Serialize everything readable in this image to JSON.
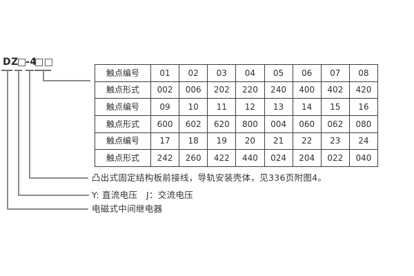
{
  "model_code": {
    "full": "DZ□-4□□",
    "seg_prefix": "DZ",
    "seg_box1": "□",
    "seg_dash4": "-4",
    "seg_box2": "□□"
  },
  "table": {
    "row_label_contact_number": "触点编号",
    "row_label_contact_form": "触点形式",
    "rows": [
      {
        "label": "触点编号",
        "values": [
          "01",
          "02",
          "03",
          "04",
          "05",
          "06",
          "07",
          "08"
        ]
      },
      {
        "label": "触点形式",
        "values": [
          "002",
          "006",
          "202",
          "220",
          "240",
          "400",
          "402",
          "420"
        ]
      },
      {
        "label": "触点编号",
        "values": [
          "09",
          "10",
          "11",
          "12",
          "13",
          "14",
          "15",
          "16"
        ]
      },
      {
        "label": "触点形式",
        "values": [
          "600",
          "602",
          "620",
          "800",
          "004",
          "060",
          "062",
          "080"
        ]
      },
      {
        "label": "触点编号",
        "values": [
          "17",
          "18",
          "19",
          "20",
          "21",
          "22",
          "23",
          "24"
        ]
      },
      {
        "label": "触点形式",
        "values": [
          "242",
          "260",
          "422",
          "440",
          "024",
          "204",
          "022",
          "040"
        ]
      }
    ]
  },
  "callouts": [
    {
      "text": "凸出式固定结构板前接线，导轨安装壳体，见336页附图4。"
    },
    {
      "text": "Y: 直流电压　J：交流电压"
    },
    {
      "text": "电磁式中间继电器"
    }
  ],
  "colors": {
    "background": "#ffffff",
    "text": "#2f2f2f",
    "table_border": "#3d3d3d",
    "leader_line": "#8a8a8a",
    "underline": "#6e6e6e"
  }
}
